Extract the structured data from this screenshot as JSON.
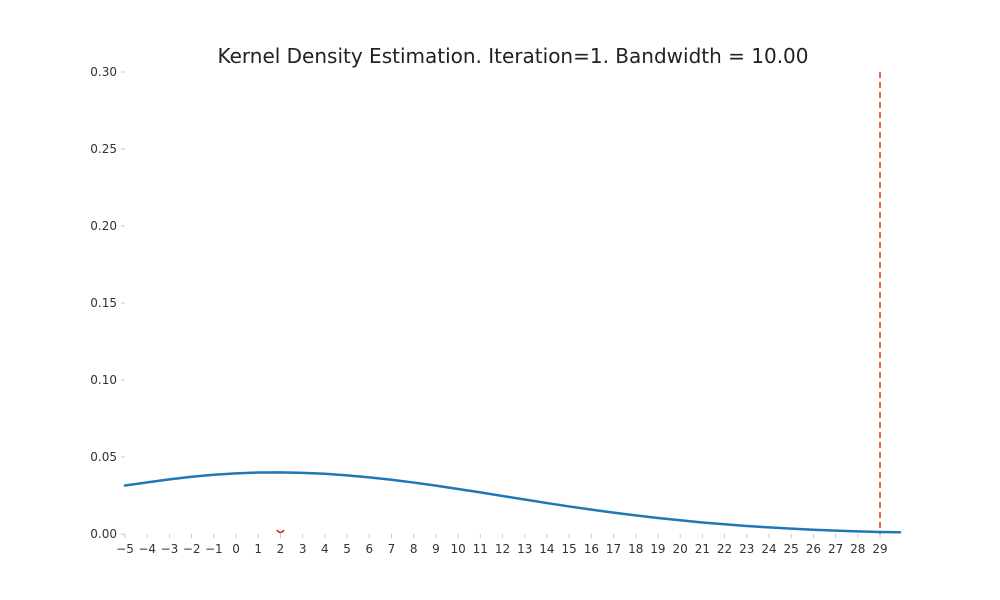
{
  "chart_data": {
    "type": "line",
    "title": "Kernel Density Estimation. Iteration=1. Bandwidth = 10.00",
    "xlabel": "",
    "ylabel": "",
    "xlim": [
      -5,
      29.9
    ],
    "ylim": [
      0,
      0.3
    ],
    "grid": false,
    "x_ticks": [
      -5,
      -4,
      -3,
      -2,
      -1,
      0,
      1,
      2,
      3,
      4,
      5,
      6,
      7,
      8,
      9,
      10,
      11,
      12,
      13,
      14,
      15,
      16,
      17,
      18,
      19,
      20,
      21,
      22,
      23,
      24,
      25,
      26,
      27,
      28,
      29
    ],
    "x_tick_labels": [
      "−5",
      "−4",
      "−3",
      "−2",
      "−1",
      "0",
      "1",
      "2",
      "3",
      "4",
      "5",
      "6",
      "7",
      "8",
      "9",
      "10",
      "11",
      "12",
      "13",
      "14",
      "15",
      "16",
      "17",
      "18",
      "19",
      "20",
      "21",
      "22",
      "23",
      "24",
      "25",
      "26",
      "27",
      "28",
      "29"
    ],
    "y_ticks": [
      0.0,
      0.05,
      0.1,
      0.15,
      0.2,
      0.25,
      0.3
    ],
    "y_tick_labels": [
      "0.00",
      "0.05",
      "0.10",
      "0.15",
      "0.20",
      "0.25",
      "0.30"
    ],
    "series": [
      {
        "color": "#1f77b4",
        "x": [
          -5,
          -4,
          -3,
          -2,
          -1,
          0,
          1,
          2,
          3,
          4,
          5,
          6,
          7,
          8,
          9,
          10,
          11,
          12,
          13,
          14,
          15,
          16,
          17,
          18,
          19,
          20,
          21,
          22,
          23,
          24,
          25,
          26,
          27,
          28,
          29,
          29.9
        ],
        "y": [
          0.0315,
          0.0335,
          0.0355,
          0.0372,
          0.0385,
          0.0394,
          0.0399,
          0.04,
          0.0397,
          0.0391,
          0.0381,
          0.0368,
          0.0352,
          0.0334,
          0.0314,
          0.0292,
          0.027,
          0.0247,
          0.0224,
          0.0201,
          0.0179,
          0.0158,
          0.0139,
          0.0121,
          0.0104,
          0.0089,
          0.0075,
          0.0063,
          0.0052,
          0.0043,
          0.0035,
          0.0028,
          0.0022,
          0.0017,
          0.0013,
          0.0011
        ]
      }
    ],
    "sample_markers": [
      {
        "x": 2,
        "y": 0.0,
        "color": "#d62728"
      }
    ],
    "vertical_lines": [
      {
        "x": 29,
        "color": "#e8532f",
        "style": "dashed"
      }
    ]
  }
}
